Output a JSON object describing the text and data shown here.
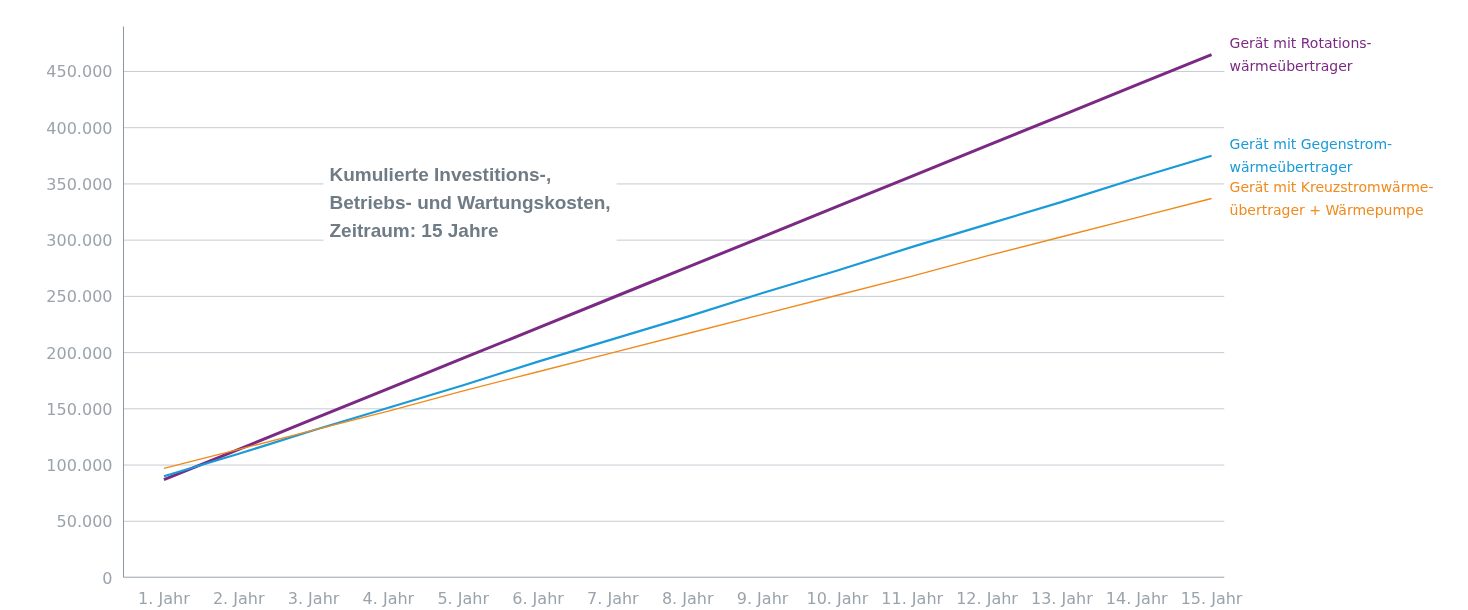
{
  "chart_data": {
    "type": "line",
    "annotations": [
      "Kumulierte Investitions-,\nBetriebs- und Wartungskosten,\nZeitraum: 15 Jahre"
    ],
    "categories": [
      "1. Jahr",
      "2. Jahr",
      "3. Jahr",
      "4. Jahr",
      "5. Jahr",
      "6. Jahr",
      "7. Jahr",
      "8. Jahr",
      "9. Jahr",
      "10. Jahr",
      "11. Jahr",
      "12. Jahr",
      "13. Jahr",
      "14. Jahr",
      "15. Jahr"
    ],
    "series": [
      {
        "name": "Gerät mit Rotations-\nwärmeübertrager",
        "color": "#7b2a83",
        "values": [
          87000,
          114000,
          141000,
          168000,
          195000,
          222000,
          249000,
          276000,
          303000,
          330000,
          357000,
          384000,
          411000,
          438000,
          465000
        ]
      },
      {
        "name": "Gerät mit Gegenstrom-\nwärmeübertrager",
        "color": "#1a9bd7",
        "values": [
          90000,
          110000,
          131000,
          151000,
          171000,
          192000,
          212000,
          232000,
          253000,
          273000,
          294000,
          314000,
          334000,
          355000,
          375000
        ]
      },
      {
        "name": "Gerät mit Kreuzstromwärme-\nübertrager + Wärmepumpe",
        "color": "#f08a1c",
        "values": [
          97000,
          114000,
          131000,
          148000,
          166000,
          183000,
          200000,
          217000,
          234000,
          251000,
          268000,
          286000,
          303000,
          320000,
          337000
        ]
      }
    ],
    "ylim": [
      0,
      490000
    ],
    "yticks": [
      {
        "value": 0,
        "label": "0"
      },
      {
        "value": 50000,
        "label": "50.000"
      },
      {
        "value": 100000,
        "label": "100.000"
      },
      {
        "value": 150000,
        "label": "150.000"
      },
      {
        "value": 200000,
        "label": "200.000"
      },
      {
        "value": 250000,
        "label": "250.000"
      },
      {
        "value": 300000,
        "label": "300.000"
      },
      {
        "value": 350000,
        "label": "350.000"
      },
      {
        "value": 400000,
        "label": "400.000"
      },
      {
        "value": 450000,
        "label": "450.000"
      }
    ],
    "grid": "y",
    "marker": "none",
    "line_style": "solid"
  }
}
